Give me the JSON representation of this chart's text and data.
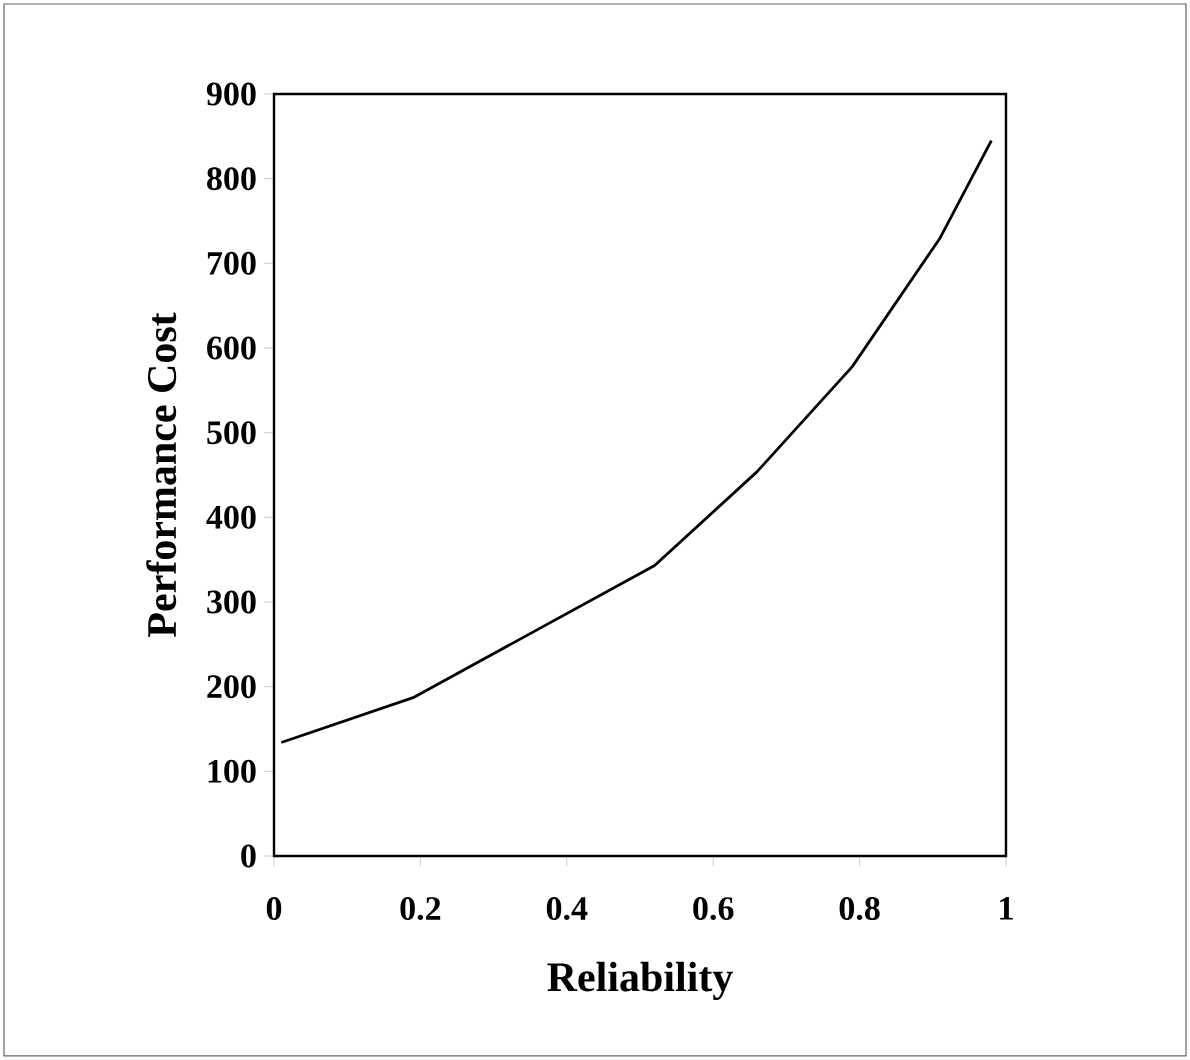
{
  "chart_data": {
    "type": "line",
    "xlabel": "Reliability",
    "ylabel": "Performance Cost",
    "color": "#000000",
    "x": [
      0.01,
      0.19,
      0.52,
      0.66,
      0.79,
      0.91,
      0.98
    ],
    "values": [
      134,
      187,
      343,
      454,
      578,
      730,
      845
    ],
    "xlim": [
      0,
      1
    ],
    "xticks": [
      0,
      0.2,
      0.4,
      0.6,
      0.8,
      1
    ],
    "ylim": [
      0,
      900
    ],
    "yticks": [
      0,
      100,
      200,
      300,
      400,
      500,
      600,
      700,
      800,
      900
    ],
    "marker": "none",
    "line_style": "solid"
  }
}
